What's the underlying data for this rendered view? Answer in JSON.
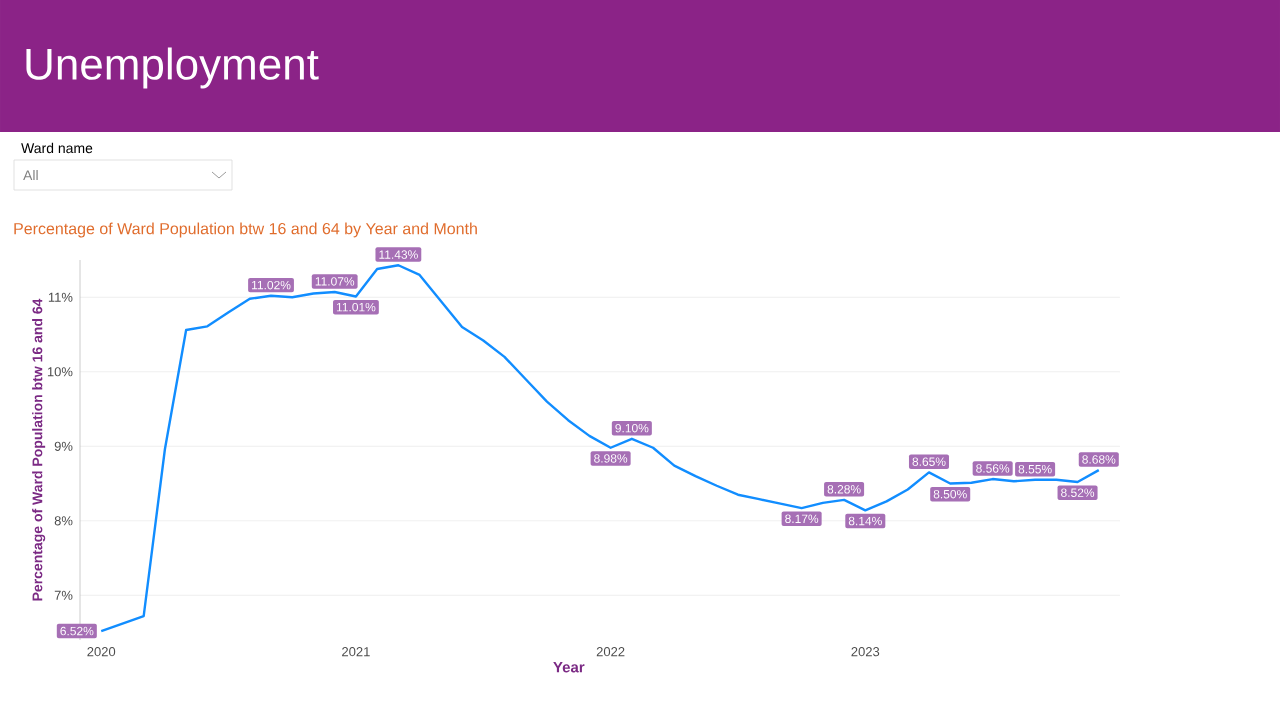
{
  "chart_data": {
    "type": "line",
    "title": "Unemployment",
    "subtitle": "Percentage of Ward Population btw 16 and 64 by Year and Month",
    "annotations": [
      "Ward name",
      "All"
    ],
    "xlabel": "Year",
    "ylabel": "Percentage of Ward Population btw 16 and 64",
    "x": [
      "2020-01",
      "2020-02",
      "2020-03",
      "2020-04",
      "2020-05",
      "2020-06",
      "2020-07",
      "2020-08",
      "2020-09",
      "2020-10",
      "2020-11",
      "2020-12",
      "2021-01",
      "2021-02",
      "2021-03",
      "2021-04",
      "2021-05",
      "2021-06",
      "2021-07",
      "2021-08",
      "2021-09",
      "2021-10",
      "2021-11",
      "2021-12",
      "2022-01",
      "2022-02",
      "2022-03",
      "2022-04",
      "2022-05",
      "2022-06",
      "2022-07",
      "2022-08",
      "2022-09",
      "2022-10",
      "2022-11",
      "2022-12",
      "2023-01",
      "2023-02",
      "2023-03",
      "2023-04",
      "2023-05",
      "2023-06",
      "2023-07",
      "2023-08",
      "2023-09",
      "2023-10",
      "2023-11",
      "2023-12"
    ],
    "values": [
      6.52,
      6.62,
      6.72,
      8.96,
      10.56,
      10.61,
      10.8,
      10.98,
      11.02,
      11.0,
      11.05,
      11.07,
      11.01,
      11.38,
      11.43,
      11.3,
      10.95,
      10.6,
      10.42,
      10.2,
      9.9,
      9.6,
      9.35,
      9.14,
      8.98,
      9.1,
      8.98,
      8.74,
      8.6,
      8.47,
      8.35,
      8.29,
      8.23,
      8.17,
      8.24,
      8.28,
      8.14,
      8.26,
      8.42,
      8.65,
      8.5,
      8.51,
      8.56,
      8.53,
      8.55,
      8.55,
      8.52,
      8.68
    ],
    "value_labels": [
      "6.52%",
      null,
      null,
      null,
      null,
      null,
      null,
      null,
      "11.02%",
      null,
      null,
      "11.07%",
      "11.01%",
      null,
      "11.43%",
      null,
      null,
      null,
      null,
      null,
      null,
      null,
      null,
      null,
      "8.98%",
      "9.10%",
      null,
      null,
      null,
      null,
      null,
      null,
      null,
      "8.17%",
      null,
      "8.28%",
      "8.14%",
      null,
      null,
      "8.65%",
      "8.50%",
      null,
      "8.56%",
      null,
      "8.55%",
      null,
      "8.52%",
      "8.68%"
    ],
    "color": "#118dff",
    "xlim": [
      "2019-12",
      "2024-01"
    ],
    "xticks": [
      "2020",
      "2021",
      "2022",
      "2023"
    ],
    "ylim": [
      6.4,
      11.5
    ],
    "yticks": [
      {
        "value": 7,
        "label": "7%"
      },
      {
        "value": 8,
        "label": "8%"
      },
      {
        "value": 9,
        "label": "9%"
      },
      {
        "value": 10,
        "label": "10%"
      },
      {
        "value": 11,
        "label": "11%"
      }
    ],
    "grid": "y",
    "marker": "none",
    "line_style": "solid"
  }
}
